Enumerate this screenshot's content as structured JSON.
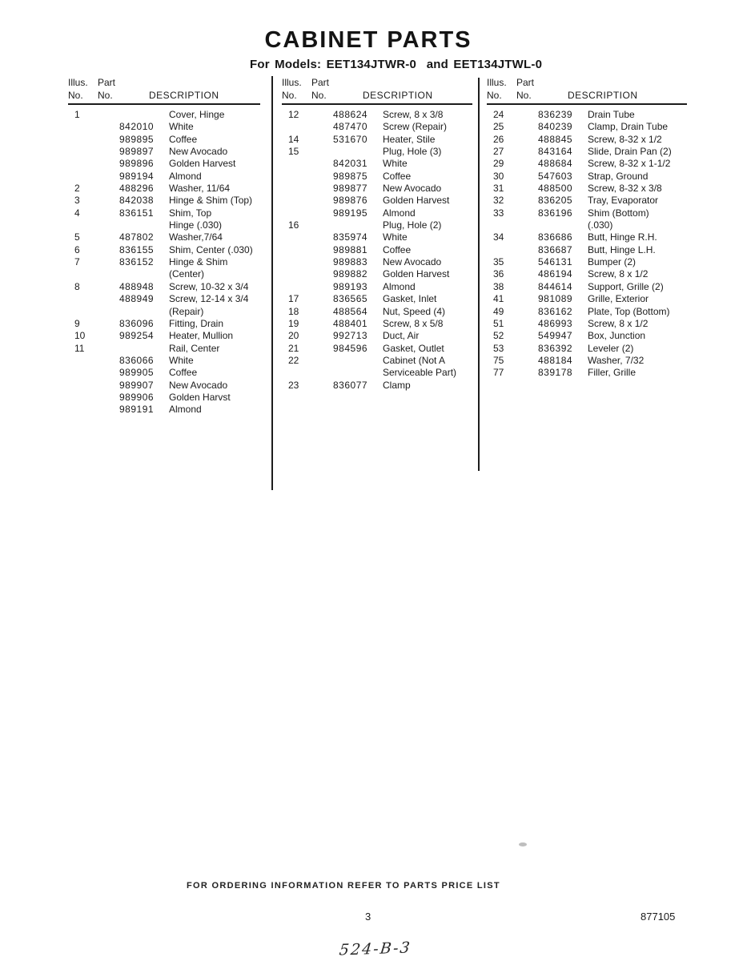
{
  "title": "CABINET PARTS",
  "subtitle": "For Models: EET134JTWR-0  and EET134JTWL-0",
  "table_header": {
    "illus": "Illus.",
    "part": "Part",
    "no": "No.",
    "description": "DESCRIPTION"
  },
  "columns": [
    {
      "rows": [
        {
          "n": "1",
          "p": "",
          "d": "Cover, Hinge"
        },
        {
          "n": "",
          "p": "842010",
          "d": "White"
        },
        {
          "n": "",
          "p": "989895",
          "d": "Coffee"
        },
        {
          "n": "",
          "p": "989897",
          "d": "New Avocado"
        },
        {
          "n": "",
          "p": "989896",
          "d": "Golden Harvest"
        },
        {
          "n": "",
          "p": "989194",
          "d": "Almond"
        },
        {
          "n": "2",
          "p": "488296",
          "d": "Washer, 11/64"
        },
        {
          "n": "3",
          "p": "842038",
          "d": "Hinge & Shim (Top)"
        },
        {
          "n": "4",
          "p": "836151",
          "d": "Shim, Top"
        },
        {
          "n": "",
          "p": "",
          "d": "Hinge (.030)"
        },
        {
          "n": "5",
          "p": "487802",
          "d": "Washer,7/64"
        },
        {
          "n": "6",
          "p": "836155",
          "d": "Shim, Center (.030)"
        },
        {
          "n": "7",
          "p": "836152",
          "d": "Hinge & Shim"
        },
        {
          "n": "",
          "p": "",
          "d": "(Center)"
        },
        {
          "n": "8",
          "p": "488948",
          "d": "Screw, 10-32 x 3/4"
        },
        {
          "n": "",
          "p": "488949",
          "d": "Screw, 12-14 x 3/4"
        },
        {
          "n": "",
          "p": "",
          "d": "(Repair)"
        },
        {
          "n": "9",
          "p": "836096",
          "d": "Fitting, Drain"
        },
        {
          "n": "10",
          "p": "989254",
          "d": "Heater, Mullion"
        },
        {
          "n": "11",
          "p": "",
          "d": "Rail, Center"
        },
        {
          "n": "",
          "p": "836066",
          "d": "White"
        },
        {
          "n": "",
          "p": "989905",
          "d": "Coffee"
        },
        {
          "n": "",
          "p": "989907",
          "d": "New Avocado"
        },
        {
          "n": "",
          "p": "989906",
          "d": "Golden Harvst"
        },
        {
          "n": "",
          "p": "989191",
          "d": "Almond"
        }
      ]
    },
    {
      "rows": [
        {
          "n": "12",
          "p": "488624",
          "d": "Screw, 8 x 3/8"
        },
        {
          "n": "",
          "p": "487470",
          "d": "Screw (Repair)"
        },
        {
          "n": "14",
          "p": "531670",
          "d": "Heater, Stile"
        },
        {
          "n": "15",
          "p": "",
          "d": "Plug, Hole (3)"
        },
        {
          "n": "",
          "p": "842031",
          "d": "White"
        },
        {
          "n": "",
          "p": "989875",
          "d": "Coffee"
        },
        {
          "n": "",
          "p": "989877",
          "d": "New Avocado"
        },
        {
          "n": "",
          "p": "989876",
          "d": "Golden Harvest"
        },
        {
          "n": "",
          "p": "989195",
          "d": "Almond"
        },
        {
          "n": "16",
          "p": "",
          "d": "Plug, Hole (2)"
        },
        {
          "n": "",
          "p": "835974",
          "d": "White"
        },
        {
          "n": "",
          "p": "989881",
          "d": "Coffee"
        },
        {
          "n": "",
          "p": "989883",
          "d": "New Avocado"
        },
        {
          "n": "",
          "p": "989882",
          "d": "Golden Harvest"
        },
        {
          "n": "",
          "p": "989193",
          "d": "Almond"
        },
        {
          "n": "17",
          "p": "836565",
          "d": "Gasket, Inlet"
        },
        {
          "n": "18",
          "p": "488564",
          "d": "Nut, Speed (4)"
        },
        {
          "n": "19",
          "p": "488401",
          "d": "Screw, 8 x 5/8"
        },
        {
          "n": "20",
          "p": "992713",
          "d": "Duct, Air"
        },
        {
          "n": "21",
          "p": "984596",
          "d": "Gasket, Outlet"
        },
        {
          "n": "22",
          "p": "",
          "d": "Cabinet (Not A"
        },
        {
          "n": "",
          "p": "",
          "d": "Serviceable Part)"
        },
        {
          "n": "23",
          "p": "836077",
          "d": "Clamp"
        }
      ]
    },
    {
      "rows": [
        {
          "n": "24",
          "p": "836239",
          "d": "Drain Tube"
        },
        {
          "n": "25",
          "p": "840239",
          "d": "Clamp, Drain Tube"
        },
        {
          "n": "26",
          "p": "488845",
          "d": "Screw, 8-32 x 1/2"
        },
        {
          "n": "27",
          "p": "843164",
          "d": "Slide, Drain Pan (2)"
        },
        {
          "n": "29",
          "p": "488684",
          "d": "Screw, 8-32 x 1-1/2"
        },
        {
          "n": "30",
          "p": "547603",
          "d": "Strap, Ground"
        },
        {
          "n": "31",
          "p": "488500",
          "d": "Screw, 8-32 x 3/8"
        },
        {
          "n": "32",
          "p": "836205",
          "d": "Tray, Evaporator"
        },
        {
          "n": "33",
          "p": "836196",
          "d": "Shim (Bottom)"
        },
        {
          "n": "",
          "p": "",
          "d": "(.030)"
        },
        {
          "n": "34",
          "p": "836686",
          "d": "Butt, Hinge R.H."
        },
        {
          "n": "",
          "p": "836687",
          "d": "Butt, Hinge L.H."
        },
        {
          "n": "35",
          "p": "546131",
          "d": "Bumper (2)"
        },
        {
          "n": "36",
          "p": "486194",
          "d": "Screw, 8 x 1/2"
        },
        {
          "n": "38",
          "p": "844614",
          "d": "Support, Grille (2)"
        },
        {
          "n": "41",
          "p": "981089",
          "d": "Grille, Exterior"
        },
        {
          "n": "49",
          "p": "836162",
          "d": "Plate, Top (Bottom)"
        },
        {
          "n": "51",
          "p": "486993",
          "d": "Screw, 8 x 1/2"
        },
        {
          "n": "52",
          "p": "549947",
          "d": "Box, Junction"
        },
        {
          "n": "53",
          "p": "836392",
          "d": "Leveler (2)"
        },
        {
          "n": "75",
          "p": "488184",
          "d": "Washer, 7/32"
        },
        {
          "n": "77",
          "p": "839178",
          "d": "Filler, Grille"
        }
      ]
    }
  ],
  "footer": {
    "ordering_note": "FOR ORDERING INFORMATION REFER TO PARTS PRICE LIST",
    "page_number": "3",
    "document_number": "877105",
    "handwritten_note": "524-B-3"
  }
}
